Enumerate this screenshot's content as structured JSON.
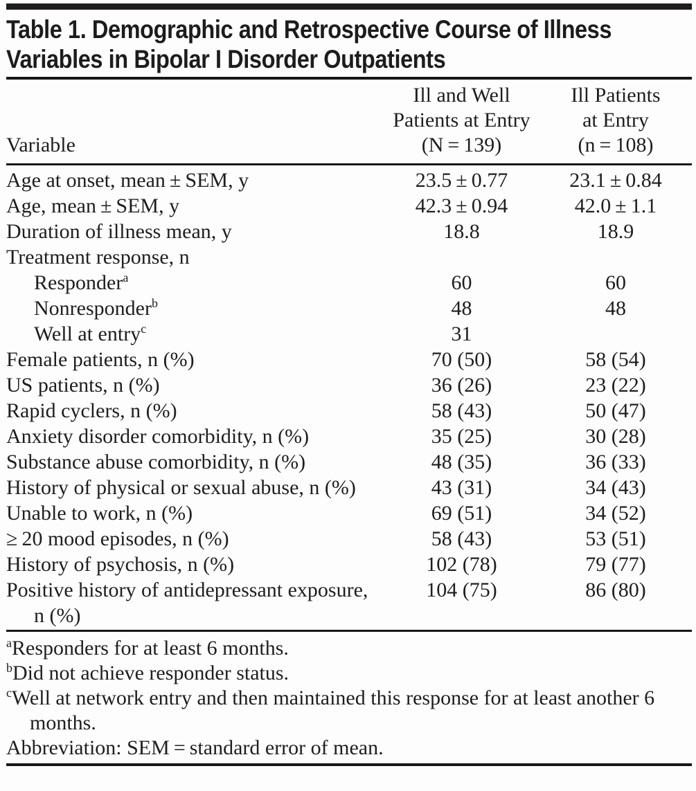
{
  "title": {
    "line1": "Table 1. Demographic and Retrospective Course of Illness",
    "line2": "Variables in Bipolar I Disorder Outpatients"
  },
  "table": {
    "header": {
      "col1": "Variable",
      "col2": {
        "line1": "Ill and Well",
        "line2": "Patients at Entry",
        "line3": "(N = 139)"
      },
      "col3": {
        "line1": "Ill Patients",
        "line2": "at Entry",
        "line3": "(n = 108)"
      }
    },
    "rows": [
      {
        "label": "Age at onset, mean ± SEM, y",
        "sup": "",
        "v1": "23.5 ± 0.77",
        "v2": "23.1 ± 0.84"
      },
      {
        "label": "Age, mean ± SEM, y",
        "sup": "",
        "v1": "42.3 ± 0.94",
        "v2": "42.0 ± 1.1"
      },
      {
        "label": "Duration of illness mean, y",
        "sup": "",
        "v1": "18.8",
        "v2": "18.9"
      },
      {
        "label": "Treatment response, n",
        "sup": "",
        "v1": "",
        "v2": ""
      },
      {
        "label": "Responder",
        "sup": "a",
        "v1": "60",
        "v2": "60"
      },
      {
        "label": "Nonresponder",
        "sup": "b",
        "v1": "48",
        "v2": "48"
      },
      {
        "label": "Well at entry",
        "sup": "c",
        "v1": "31",
        "v2": ""
      },
      {
        "label": "Female patients, n (%)",
        "sup": "",
        "v1": "70 (50)",
        "v2": "58 (54)"
      },
      {
        "label": "US patients, n (%)",
        "sup": "",
        "v1": "36 (26)",
        "v2": "23 (22)"
      },
      {
        "label": "Rapid cyclers, n (%)",
        "sup": "",
        "v1": "58 (43)",
        "v2": "50 (47)"
      },
      {
        "label": "Anxiety disorder comorbidity, n (%)",
        "sup": "",
        "v1": "35 (25)",
        "v2": "30 (28)"
      },
      {
        "label": "Substance abuse comorbidity, n (%)",
        "sup": "",
        "v1": "48 (35)",
        "v2": "36 (33)"
      },
      {
        "label": "History of physical or sexual abuse, n (%)",
        "sup": "",
        "v1": "43 (31)",
        "v2": "34 (43)"
      },
      {
        "label": "Unable to work, n (%)",
        "sup": "",
        "v1": "69 (51)",
        "v2": "34 (52)"
      },
      {
        "label": "≥ 20 mood episodes, n (%)",
        "sup": "",
        "v1": "58 (43)",
        "v2": "53 (51)"
      },
      {
        "label": "History of psychosis, n (%)",
        "sup": "",
        "v1": "102 (78)",
        "v2": "79 (77)"
      },
      {
        "label": "Positive history of antidepressant exposure, n (%)",
        "sup": "",
        "v1": "104 (75)",
        "v2": "86 (80)"
      }
    ]
  },
  "footnotes": [
    {
      "sup": "a",
      "text": "Responders for at least 6 months."
    },
    {
      "sup": "b",
      "text": "Did not achieve responder status."
    },
    {
      "sup": "c",
      "text": "Well at network entry and then maintained this response for at least another 6 months."
    },
    {
      "sup": "",
      "text": "Abbreviation: SEM = standard error of mean."
    }
  ]
}
